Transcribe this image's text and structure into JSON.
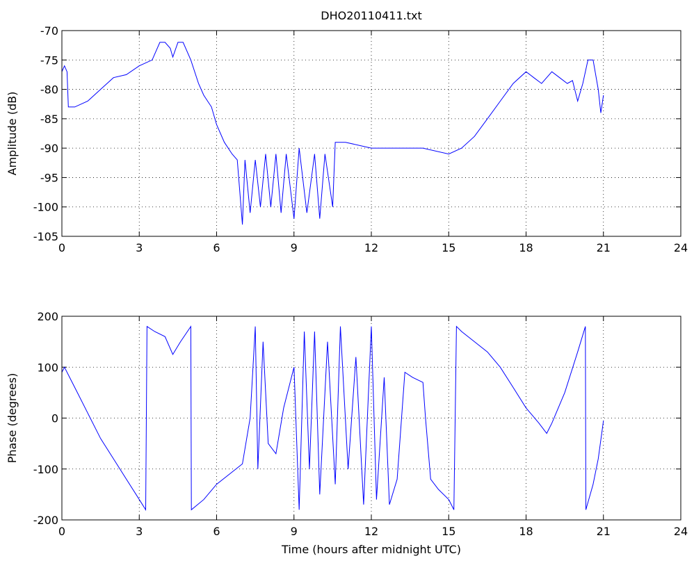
{
  "chart_data": [
    {
      "type": "line",
      "title": "DHO20110411.txt",
      "y_label": "Amplitude (dB)",
      "xlim": [
        0,
        24
      ],
      "xticks": [
        0,
        3,
        6,
        9,
        12,
        15,
        18,
        21,
        24
      ],
      "ylim": [
        -105,
        -70
      ],
      "yticks": [
        -105,
        -100,
        -95,
        -90,
        -85,
        -80,
        -75,
        -70
      ],
      "grid": true,
      "x": [
        0,
        0.1,
        0.2,
        0.25,
        0.5,
        1,
        1.5,
        2,
        2.5,
        3,
        3.5,
        3.8,
        4,
        4.2,
        4.3,
        4.5,
        4.7,
        5,
        5.3,
        5.5,
        5.8,
        6,
        6.3,
        6.6,
        6.8,
        7,
        7.1,
        7.3,
        7.5,
        7.7,
        7.9,
        8.1,
        8.3,
        8.5,
        8.7,
        9,
        9.2,
        9.5,
        9.8,
        10,
        10.2,
        10.5,
        10.6,
        11,
        12,
        13,
        14,
        15,
        15.5,
        16,
        16.5,
        17,
        17.5,
        18,
        18.3,
        18.6,
        19,
        19.3,
        19.6,
        19.8,
        20,
        20.2,
        20.4,
        20.6,
        20.8,
        20.9,
        21
      ],
      "series": [
        {
          "color": "#0000ff",
          "values": [
            -77,
            -76,
            -77,
            -83,
            -83,
            -82,
            -80,
            -78,
            -77.5,
            -76,
            -75,
            -72,
            -72,
            -73,
            -74.5,
            -72,
            -72,
            -75,
            -79,
            -81,
            -83,
            -86,
            -89,
            -91,
            -92,
            -103,
            -92,
            -101,
            -92,
            -100,
            -91,
            -100,
            -91,
            -101,
            -91,
            -102,
            -90,
            -101,
            -91,
            -102,
            -91,
            -100,
            -89,
            -89,
            -90,
            -90,
            -90,
            -91,
            -90,
            -88,
            -85,
            -82,
            -79,
            -77,
            -78,
            -79,
            -77,
            -78,
            -79,
            -78.5,
            -82,
            -79,
            -75,
            -75,
            -80,
            -84,
            -81
          ]
        }
      ]
    },
    {
      "type": "line",
      "x_label": "Time (hours after midnight UTC)",
      "y_label": "Phase (degrees)",
      "xlim": [
        0,
        24
      ],
      "xticks": [
        0,
        3,
        6,
        9,
        12,
        15,
        18,
        21,
        24
      ],
      "ylim": [
        -200,
        200
      ],
      "yticks": [
        -200,
        -100,
        0,
        100,
        200
      ],
      "grid": true,
      "x": [
        0,
        0.1,
        0.3,
        0.6,
        1,
        1.5,
        2,
        2.5,
        3,
        3.25,
        3.3,
        3.6,
        4,
        4.3,
        4.6,
        5,
        5.02,
        5.5,
        6,
        6.5,
        7,
        7.3,
        7.5,
        7.6,
        7.8,
        8,
        8.3,
        8.6,
        9,
        9.2,
        9.4,
        9.6,
        9.8,
        10,
        10.3,
        10.6,
        10.8,
        11.1,
        11.4,
        11.7,
        12,
        12.2,
        12.5,
        12.7,
        13,
        13.3,
        13.6,
        14,
        14.1,
        14.3,
        14.6,
        15,
        15.2,
        15.3,
        15.5,
        16,
        16.5,
        17,
        17.5,
        18,
        18.5,
        18.8,
        19,
        19.5,
        20,
        20.3,
        20.32,
        20.6,
        20.8,
        21
      ],
      "series": [
        {
          "color": "#0000ff",
          "values": [
            90,
            100,
            80,
            50,
            10,
            -40,
            -80,
            -120,
            -160,
            -180,
            180,
            170,
            160,
            125,
            150,
            180,
            -180,
            -160,
            -130,
            -110,
            -90,
            0,
            180,
            -100,
            150,
            -50,
            -70,
            20,
            100,
            -180,
            170,
            -100,
            170,
            -150,
            150,
            -130,
            180,
            -100,
            120,
            -170,
            180,
            -160,
            80,
            -170,
            -120,
            90,
            80,
            70,
            0,
            -120,
            -140,
            -160,
            -180,
            180,
            170,
            150,
            130,
            100,
            60,
            20,
            -10,
            -30,
            -10,
            50,
            130,
            180,
            -180,
            -130,
            -80,
            -5
          ]
        }
      ]
    }
  ]
}
